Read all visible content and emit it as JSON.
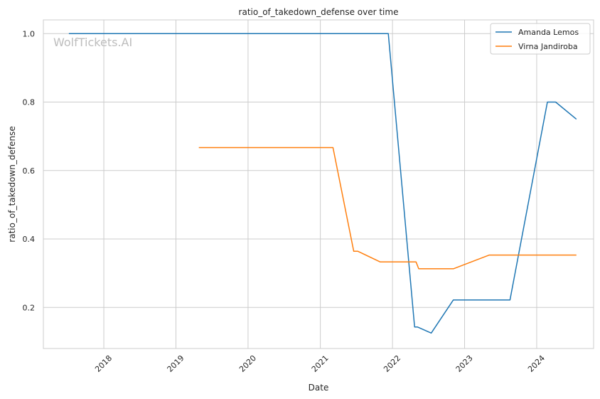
{
  "watermark": "WolfTickets.AI",
  "chart_data": {
    "type": "line",
    "title": "ratio_of_takedown_defense over time",
    "xlabel": "Date",
    "ylabel": "ratio_of_takedown_defense",
    "xlim": [
      "2017-03-01",
      "2024-10-15"
    ],
    "ylim": [
      0.08,
      1.04
    ],
    "x_ticks": [
      "2018",
      "2019",
      "2020",
      "2021",
      "2022",
      "2023",
      "2024"
    ],
    "y_ticks": [
      0.2,
      0.4,
      0.6,
      0.8,
      1.0
    ],
    "y_tick_labels": [
      "0.2",
      "0.4",
      "0.6",
      "0.8",
      "1.0"
    ],
    "grid": true,
    "legend_position": "top-right",
    "series": [
      {
        "name": "Amanda Lemos",
        "color": "#1f77b4",
        "points": [
          {
            "x": "2017-07-08",
            "y": 1.0
          },
          {
            "x": "2021-12-11",
            "y": 1.0
          },
          {
            "x": "2022-04-23",
            "y": 0.143
          },
          {
            "x": "2022-05-07",
            "y": 0.143
          },
          {
            "x": "2022-07-16",
            "y": 0.125
          },
          {
            "x": "2022-11-05",
            "y": 0.222
          },
          {
            "x": "2023-08-19",
            "y": 0.222
          },
          {
            "x": "2024-02-24",
            "y": 0.8
          },
          {
            "x": "2024-04-06",
            "y": 0.8
          },
          {
            "x": "2024-07-20",
            "y": 0.75
          }
        ]
      },
      {
        "name": "Virna Jandiroba",
        "color": "#ff7f0e",
        "points": [
          {
            "x": "2019-04-27",
            "y": 0.667
          },
          {
            "x": "2021-03-06",
            "y": 0.667
          },
          {
            "x": "2021-06-19",
            "y": 0.364
          },
          {
            "x": "2021-07-10",
            "y": 0.364
          },
          {
            "x": "2021-10-30",
            "y": 0.333
          },
          {
            "x": "2022-04-30",
            "y": 0.333
          },
          {
            "x": "2022-05-14",
            "y": 0.313
          },
          {
            "x": "2022-11-05",
            "y": 0.313
          },
          {
            "x": "2023-05-06",
            "y": 0.353
          },
          {
            "x": "2024-07-20",
            "y": 0.353
          }
        ]
      }
    ]
  }
}
